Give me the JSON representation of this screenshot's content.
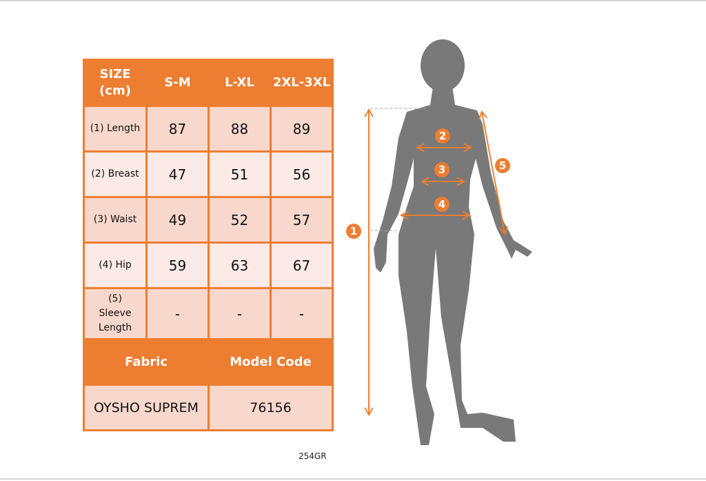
{
  "table": {
    "header": [
      "SIZE (cm)",
      "S-M",
      "L-XL",
      "2XL-3XL"
    ],
    "rows": [
      {
        "label": "(1) Length",
        "values": [
          "87",
          "88",
          "89"
        ]
      },
      {
        "label": "(2) Breast",
        "values": [
          "47",
          "51",
          "56"
        ]
      },
      {
        "label": "(3) Waist",
        "values": [
          "49",
          "52",
          "57"
        ]
      },
      {
        "label": "(4) Hip",
        "values": [
          "59",
          "63",
          "67"
        ]
      },
      {
        "label": "(5) Sleeve Length",
        "values": [
          "-",
          "-",
          "-"
        ]
      }
    ],
    "fabric_header": "Fabric",
    "model_header": "Model Code",
    "fabric": "OYSHO SUPREM",
    "model_code": "76156"
  },
  "figure": {
    "markers": [
      "1",
      "2",
      "3",
      "4",
      "5"
    ],
    "accent": "#ed7d31",
    "silhouette": "#797979"
  },
  "product_code": "254GR"
}
